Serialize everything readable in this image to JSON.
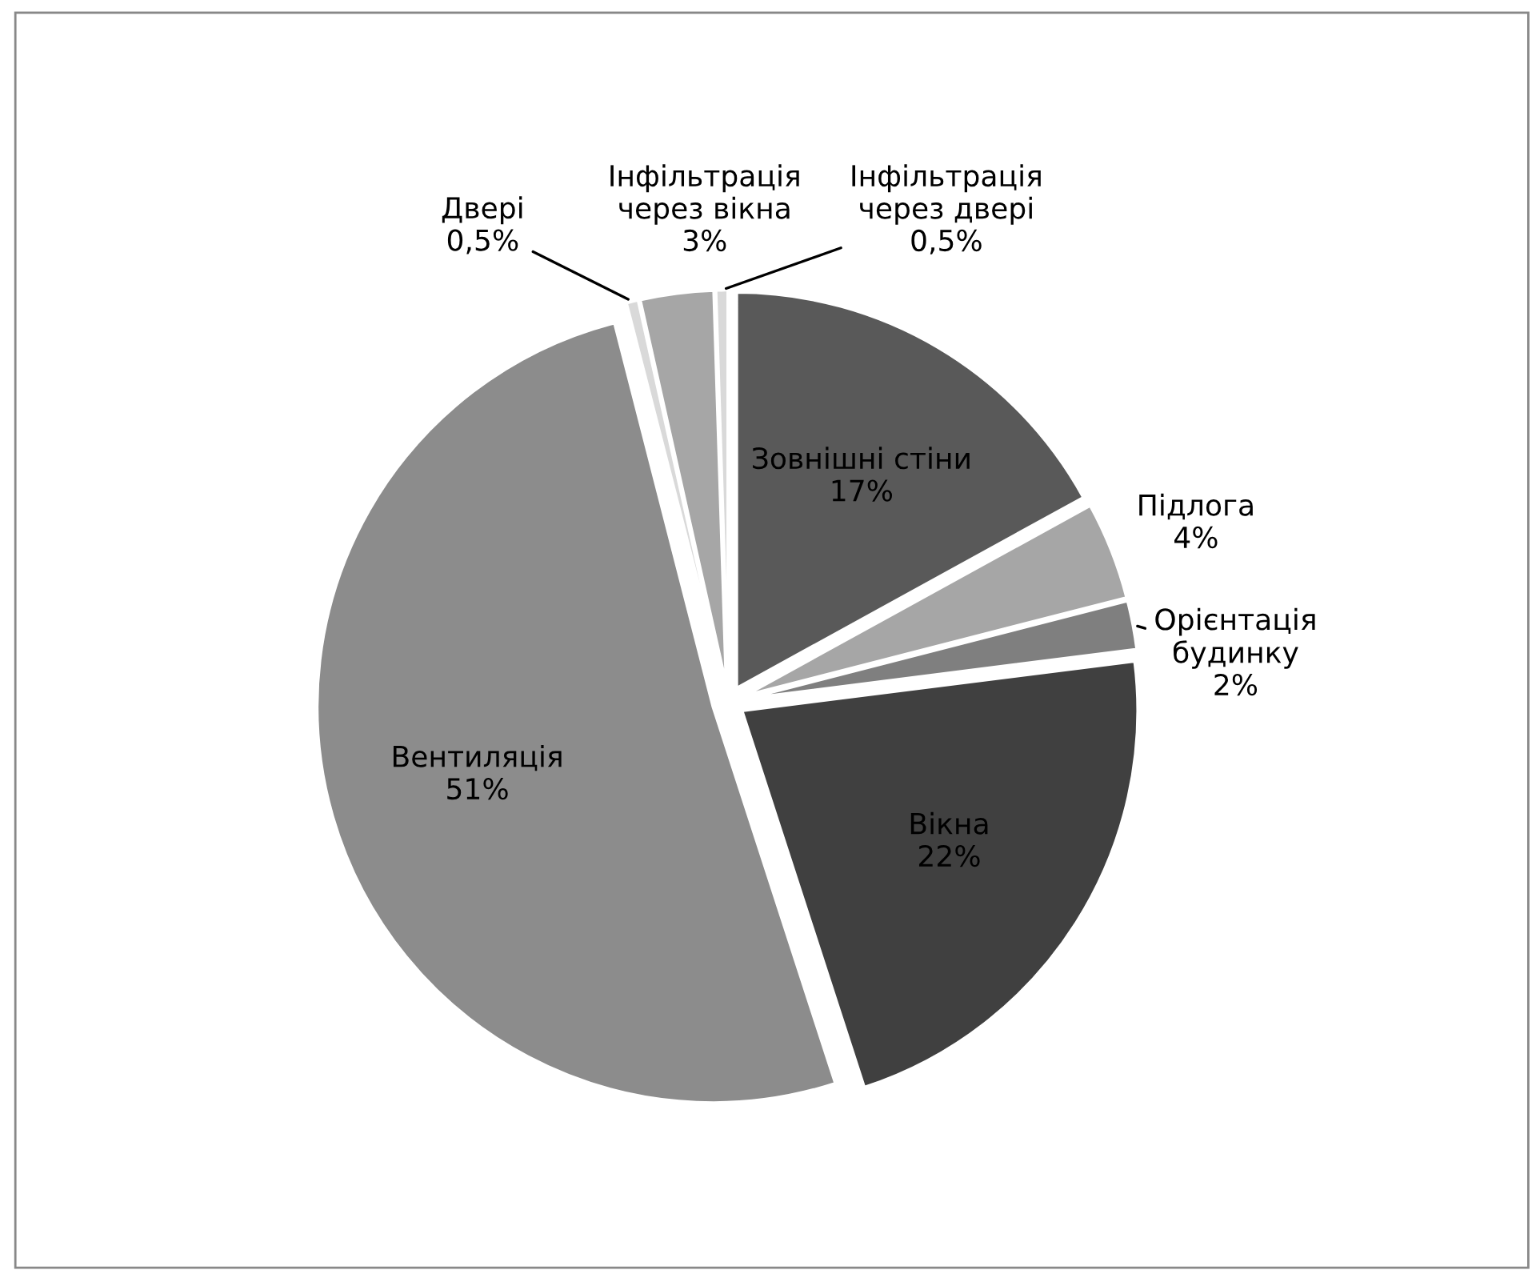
{
  "chart_data": {
    "type": "pie",
    "categories": [
      "Зовнішні стіни",
      "Підлога",
      "Орієнтація будинку",
      "Вікна",
      "Вентиляція",
      "Двері",
      "Інфільтрація через вікна",
      "Інфільтрація через двері"
    ],
    "values": [
      17,
      4,
      2,
      22,
      51,
      0.5,
      3,
      0.5
    ],
    "value_labels": [
      "17%",
      "4%",
      "2%",
      "22%",
      "51%",
      "0,5%",
      "3%",
      "0,5%"
    ],
    "colors": [
      "#595959",
      "#a6a6a6",
      "#7f7f7f",
      "#404040",
      "#8c8c8c",
      "#d9d9d9",
      "#a6a6a6",
      "#d9d9d9"
    ]
  }
}
